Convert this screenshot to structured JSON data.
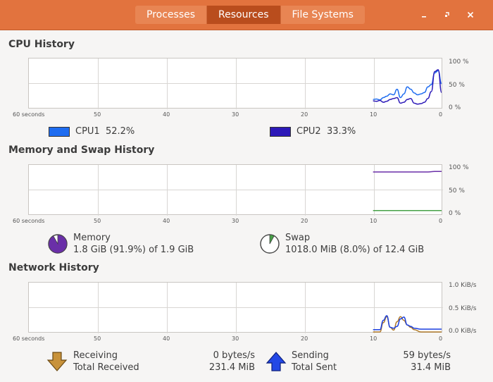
{
  "tabs": [
    {
      "label": "Processes",
      "active": false
    },
    {
      "label": "Resources",
      "active": true
    },
    {
      "label": "File Systems",
      "active": false
    }
  ],
  "window_controls": {
    "minimize_icon": "minimize-icon",
    "maximize_icon": "maximize-icon",
    "close_icon": "close-icon"
  },
  "cpu": {
    "title": "CPU History",
    "y_ticks": [
      "100 %",
      "50 %",
      "0 %"
    ],
    "x_ticks": [
      "60 seconds",
      "50",
      "40",
      "30",
      "20",
      "10",
      "0"
    ],
    "legend": [
      {
        "label": "CPU1",
        "value": "52.2%",
        "color": "#1e6cf0"
      },
      {
        "label": "CPU2",
        "value": "33.3%",
        "color": "#2c19b8"
      }
    ]
  },
  "memory": {
    "title": "Memory and Swap History",
    "y_ticks": [
      "100 %",
      "50 %",
      "0 %"
    ],
    "x_ticks": [
      "60 seconds",
      "50",
      "40",
      "30",
      "20",
      "10",
      "0"
    ],
    "memory": {
      "label": "Memory",
      "detail": "1.8 GiB (91.9%) of 1.9 GiB",
      "color": "#6a2fa8",
      "fraction": 0.919
    },
    "swap": {
      "label": "Swap",
      "detail": "1018.0 MiB (8.0%) of 12.4 GiB",
      "color": "#46a046",
      "fraction": 0.08
    }
  },
  "network": {
    "title": "Network History",
    "y_ticks": [
      "1.0 KiB/s",
      "0.5 KiB/s",
      "0.0 KiB/s"
    ],
    "x_ticks": [
      "60 seconds",
      "50",
      "40",
      "30",
      "20",
      "10",
      "0"
    ],
    "receiving": {
      "label": "Receiving",
      "rate": "0 bytes/s",
      "total_label": "Total Received",
      "total": "231.4 MiB",
      "color": "#b07a2a"
    },
    "sending": {
      "label": "Sending",
      "rate": "59 bytes/s",
      "total_label": "Total Sent",
      "total": "31.4 MiB",
      "color": "#1a3fe0"
    }
  },
  "chart_data": [
    {
      "type": "line",
      "title": "CPU History",
      "xlabel": "",
      "ylabel": "",
      "x": [
        10,
        9.5,
        9,
        8.5,
        8,
        7.5,
        7,
        6.5,
        6,
        5.5,
        5,
        4.5,
        4,
        3.5,
        3,
        2.5,
        2,
        1.5,
        1,
        0.5,
        0
      ],
      "ylim": [
        0,
        100
      ],
      "xlim": [
        60,
        0
      ],
      "series": [
        {
          "name": "CPU1",
          "values": [
            18,
            19,
            17,
            22,
            25,
            30,
            28,
            40,
            22,
            30,
            45,
            40,
            32,
            28,
            30,
            33,
            45,
            50,
            75,
            80,
            52
          ]
        },
        {
          "name": "CPU2",
          "values": [
            15,
            14,
            16,
            12,
            14,
            18,
            20,
            22,
            10,
            12,
            18,
            20,
            10,
            8,
            9,
            12,
            20,
            35,
            78,
            82,
            33
          ]
        }
      ]
    },
    {
      "type": "line",
      "title": "Memory and Swap History",
      "xlabel": "",
      "ylabel": "",
      "x": [
        10,
        8,
        6,
        4,
        2,
        1,
        0
      ],
      "ylim": [
        0,
        100
      ],
      "xlim": [
        60,
        0
      ],
      "series": [
        {
          "name": "Memory",
          "values": [
            91,
            91,
            91,
            91,
            91,
            92,
            92
          ]
        },
        {
          "name": "Swap",
          "values": [
            8,
            8,
            8,
            8,
            8,
            8,
            8
          ]
        }
      ]
    },
    {
      "type": "line",
      "title": "Network History",
      "xlabel": "",
      "ylabel": "",
      "x": [
        10,
        9,
        8.5,
        8,
        7.5,
        7,
        6.5,
        6,
        5.5,
        5,
        4.5,
        4,
        3,
        2,
        1,
        0
      ],
      "ylim": [
        0,
        1.0
      ],
      "xlim": [
        60,
        0
      ],
      "series": [
        {
          "name": "Receiving",
          "values": [
            0,
            0,
            0.2,
            0.33,
            0.1,
            0.04,
            0.22,
            0.33,
            0.25,
            0.15,
            0.1,
            0.05,
            0.0,
            0.0,
            0.0,
            0.0
          ]
        },
        {
          "name": "Sending",
          "values": [
            0.05,
            0.05,
            0.25,
            0.35,
            0.1,
            0.08,
            0.12,
            0.28,
            0.32,
            0.15,
            0.12,
            0.08,
            0.06,
            0.06,
            0.06,
            0.06
          ]
        }
      ]
    }
  ]
}
